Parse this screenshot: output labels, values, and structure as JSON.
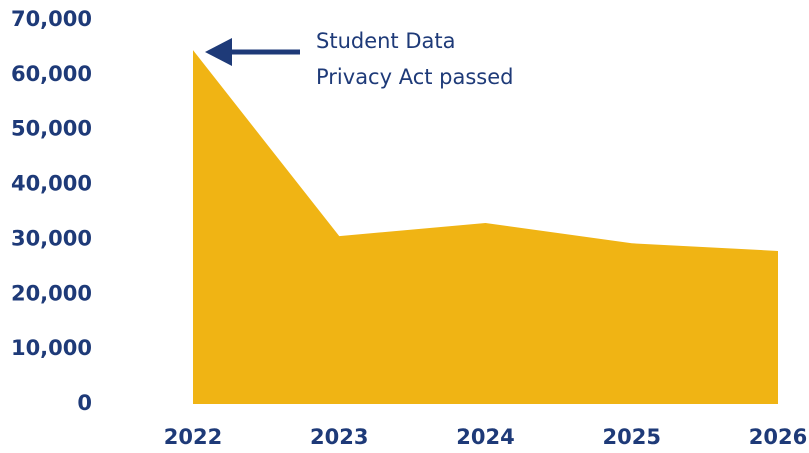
{
  "chart_data": {
    "type": "area",
    "categories": [
      "2022",
      "2023",
      "2024",
      "2025",
      "2026"
    ],
    "values": [
      64500,
      30600,
      33000,
      29300,
      27900
    ],
    "color": "#f0b414",
    "ylim": [
      0,
      70000
    ],
    "yticks": [
      0,
      {
        "value": 10000,
        "label": "10,000"
      },
      {
        "value": 20000,
        "label": "20,000"
      },
      {
        "value": 30000,
        "label": "30,000"
      },
      {
        "value": 40000,
        "label": "40,000"
      },
      {
        "value": 50000,
        "label": "50,000"
      },
      {
        "value": 60000,
        "label": "60,000"
      },
      {
        "value": 70000,
        "label": "70,000"
      }
    ],
    "annotation": [
      "Student Data",
      "Privacy Act passed"
    ],
    "grid": false
  }
}
